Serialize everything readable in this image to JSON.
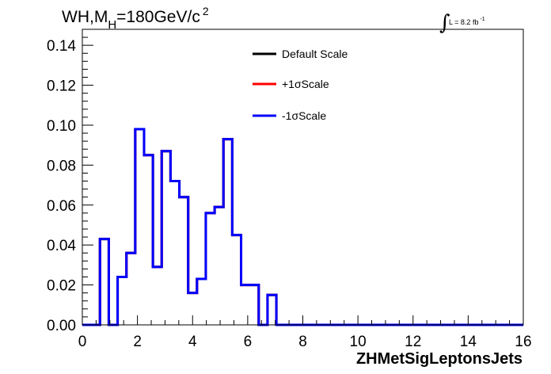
{
  "chart_data": {
    "type": "line",
    "subtype": "histogram-step",
    "title": {
      "main": "WH,M",
      "sub": "H",
      "rest": "=180GeV/c",
      "sup": "2"
    },
    "lumi": {
      "prefix": "∫",
      "text": "L = 8.2 fb",
      "sup": "-1"
    },
    "xlabel": "ZHMetSigLeptonsJets",
    "ylabel": "",
    "xlim": [
      0,
      16
    ],
    "ylim": [
      0,
      0.148
    ],
    "xticks": [
      0,
      2,
      4,
      6,
      8,
      10,
      12,
      14,
      16
    ],
    "yticks": [
      0.0,
      0.02,
      0.04,
      0.06,
      0.08,
      0.1,
      0.12,
      0.14
    ],
    "ytick_labels": [
      "0.00",
      "0.02",
      "0.04",
      "0.06",
      "0.08",
      "0.10",
      "0.12",
      "0.14"
    ],
    "grid": false,
    "legend_position": "top-center",
    "bin_edges": [
      0.0,
      0.64,
      0.96,
      1.28,
      1.6,
      1.92,
      2.24,
      2.56,
      2.88,
      3.2,
      3.52,
      3.84,
      4.16,
      4.48,
      4.8,
      5.12,
      5.44,
      5.76,
      6.08,
      6.4,
      6.72,
      7.04,
      7.36,
      16.0
    ],
    "series": [
      {
        "name": "Default Scale",
        "color": "#000000",
        "values": [
          0.0,
          0.043,
          0.0,
          0.024,
          0.036,
          0.098,
          0.085,
          0.029,
          0.087,
          0.072,
          0.064,
          0.016,
          0.023,
          0.056,
          0.059,
          0.093,
          0.045,
          0.02,
          0.02,
          0.0,
          0.015,
          0.0,
          0.0
        ]
      },
      {
        "name": "+1σScale",
        "color": "#ff0000",
        "values": [
          0.0,
          0.043,
          0.0,
          0.024,
          0.036,
          0.098,
          0.085,
          0.029,
          0.087,
          0.072,
          0.064,
          0.016,
          0.023,
          0.056,
          0.059,
          0.093,
          0.045,
          0.02,
          0.02,
          0.0,
          0.015,
          0.0,
          0.0
        ]
      },
      {
        "name": "-1σScale",
        "color": "#0000ff",
        "values": [
          0.0,
          0.043,
          0.0,
          0.024,
          0.036,
          0.098,
          0.085,
          0.029,
          0.087,
          0.072,
          0.064,
          0.016,
          0.023,
          0.056,
          0.059,
          0.093,
          0.045,
          0.02,
          0.02,
          0.0,
          0.015,
          0.0,
          0.0
        ]
      }
    ]
  }
}
